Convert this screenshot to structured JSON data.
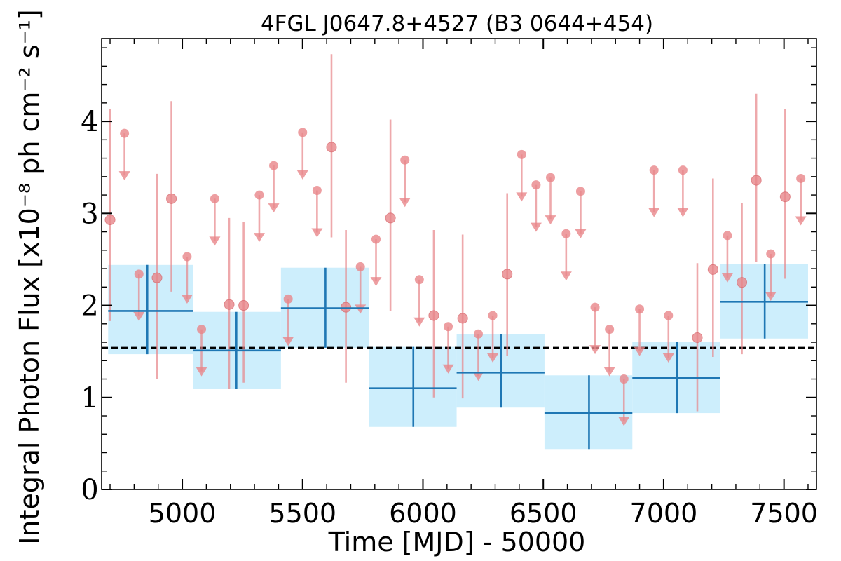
{
  "chart_data": {
    "type": "scatter",
    "title": "4FGL J0647.8+4527 (B3 0644+454)",
    "xlabel": "Time [MJD] - 50000",
    "ylabel": "Integral Photon Flux [x10⁻⁸ ph cm⁻² s⁻¹]",
    "xlim": [
      4665,
      7635
    ],
    "ylim": [
      0,
      4.9
    ],
    "xticks": [
      5000,
      5500,
      6000,
      6500,
      7000,
      7500
    ],
    "yticks": [
      0,
      1,
      2,
      3,
      4
    ],
    "xtick_labels": [
      "5000",
      "5500",
      "6000",
      "6500",
      "7000",
      "7500"
    ],
    "ytick_labels": [
      "0",
      "1",
      "2",
      "3",
      "4"
    ],
    "grid": false,
    "mean_flux": 1.54,
    "colors": {
      "points": "#e8868a",
      "bins": "#1f77b4",
      "bin_fill": "#cdeefc",
      "mean_line": "#000000"
    },
    "series": [
      {
        "kind": "binned",
        "points": [
          {
            "x": 4855,
            "xmin": 4692,
            "xmax": 5045,
            "y": 1.94,
            "ylo": 1.47,
            "yhi": 2.44
          },
          {
            "x": 5225,
            "xmin": 5045,
            "xmax": 5410,
            "y": 1.51,
            "ylo": 1.09,
            "yhi": 1.93
          },
          {
            "x": 5595,
            "xmin": 5410,
            "xmax": 5775,
            "y": 1.97,
            "ylo": 1.54,
            "yhi": 2.41
          },
          {
            "x": 5960,
            "xmin": 5775,
            "xmax": 6140,
            "y": 1.1,
            "ylo": 0.68,
            "yhi": 1.55
          },
          {
            "x": 6325,
            "xmin": 6140,
            "xmax": 6505,
            "y": 1.27,
            "ylo": 0.89,
            "yhi": 1.69
          },
          {
            "x": 6690,
            "xmin": 6505,
            "xmax": 6870,
            "y": 0.83,
            "ylo": 0.44,
            "yhi": 1.24
          },
          {
            "x": 7055,
            "xmin": 6870,
            "xmax": 7235,
            "y": 1.21,
            "ylo": 0.83,
            "yhi": 1.6
          },
          {
            "x": 7420,
            "xmin": 7235,
            "xmax": 7600,
            "y": 2.04,
            "ylo": 1.64,
            "yhi": 2.45
          }
        ]
      },
      {
        "kind": "detections",
        "points": [
          {
            "x": 4700,
            "y": 2.93,
            "ylo": 1.83,
            "yhi": 4.13
          },
          {
            "x": 4895,
            "y": 2.3,
            "ylo": 1.2,
            "yhi": 3.43
          },
          {
            "x": 4955,
            "y": 3.16,
            "ylo": 2.15,
            "yhi": 4.22
          },
          {
            "x": 5195,
            "y": 2.01,
            "ylo": 1.09,
            "yhi": 2.95
          },
          {
            "x": 5255,
            "y": 2.0,
            "ylo": 1.16,
            "yhi": 2.91
          },
          {
            "x": 5620,
            "y": 3.72,
            "ylo": 2.74,
            "yhi": 4.73
          },
          {
            "x": 5680,
            "y": 1.98,
            "ylo": 1.16,
            "yhi": 2.82
          },
          {
            "x": 5865,
            "y": 2.95,
            "ylo": 1.94,
            "yhi": 4.02
          },
          {
            "x": 6045,
            "y": 1.89,
            "ylo": 1.0,
            "yhi": 2.82
          },
          {
            "x": 6165,
            "y": 1.86,
            "ylo": 0.99,
            "yhi": 2.77
          },
          {
            "x": 6350,
            "y": 2.34,
            "ylo": 1.45,
            "yhi": 3.22
          },
          {
            "x": 7140,
            "y": 1.65,
            "ylo": 0.85,
            "yhi": 2.46
          },
          {
            "x": 7205,
            "y": 2.39,
            "ylo": 1.44,
            "yhi": 3.38
          },
          {
            "x": 7325,
            "y": 2.25,
            "ylo": 1.47,
            "yhi": 3.11
          },
          {
            "x": 7385,
            "y": 3.36,
            "ylo": 2.47,
            "yhi": 4.3
          },
          {
            "x": 7505,
            "y": 3.18,
            "ylo": 2.29,
            "yhi": 4.13
          }
        ]
      },
      {
        "kind": "upper_limits",
        "points": [
          {
            "x": 4760,
            "y": 3.87
          },
          {
            "x": 4820,
            "y": 2.34
          },
          {
            "x": 5020,
            "y": 2.53
          },
          {
            "x": 5080,
            "y": 1.74
          },
          {
            "x": 5135,
            "y": 3.16
          },
          {
            "x": 5320,
            "y": 3.2
          },
          {
            "x": 5380,
            "y": 3.52
          },
          {
            "x": 5440,
            "y": 2.07
          },
          {
            "x": 5500,
            "y": 3.88
          },
          {
            "x": 5560,
            "y": 3.25
          },
          {
            "x": 5740,
            "y": 2.42
          },
          {
            "x": 5805,
            "y": 2.72
          },
          {
            "x": 5925,
            "y": 3.58
          },
          {
            "x": 5985,
            "y": 2.28
          },
          {
            "x": 6105,
            "y": 1.77
          },
          {
            "x": 6230,
            "y": 1.69
          },
          {
            "x": 6290,
            "y": 1.89
          },
          {
            "x": 6410,
            "y": 3.64
          },
          {
            "x": 6470,
            "y": 3.31
          },
          {
            "x": 6530,
            "y": 3.39
          },
          {
            "x": 6595,
            "y": 2.78
          },
          {
            "x": 6655,
            "y": 3.24
          },
          {
            "x": 6715,
            "y": 1.98
          },
          {
            "x": 6775,
            "y": 1.74
          },
          {
            "x": 6835,
            "y": 1.2
          },
          {
            "x": 6900,
            "y": 1.96
          },
          {
            "x": 6960,
            "y": 3.47
          },
          {
            "x": 7020,
            "y": 1.89
          },
          {
            "x": 7080,
            "y": 3.47
          },
          {
            "x": 7265,
            "y": 2.76
          },
          {
            "x": 7445,
            "y": 2.56
          },
          {
            "x": 7570,
            "y": 3.38
          }
        ]
      }
    ]
  }
}
